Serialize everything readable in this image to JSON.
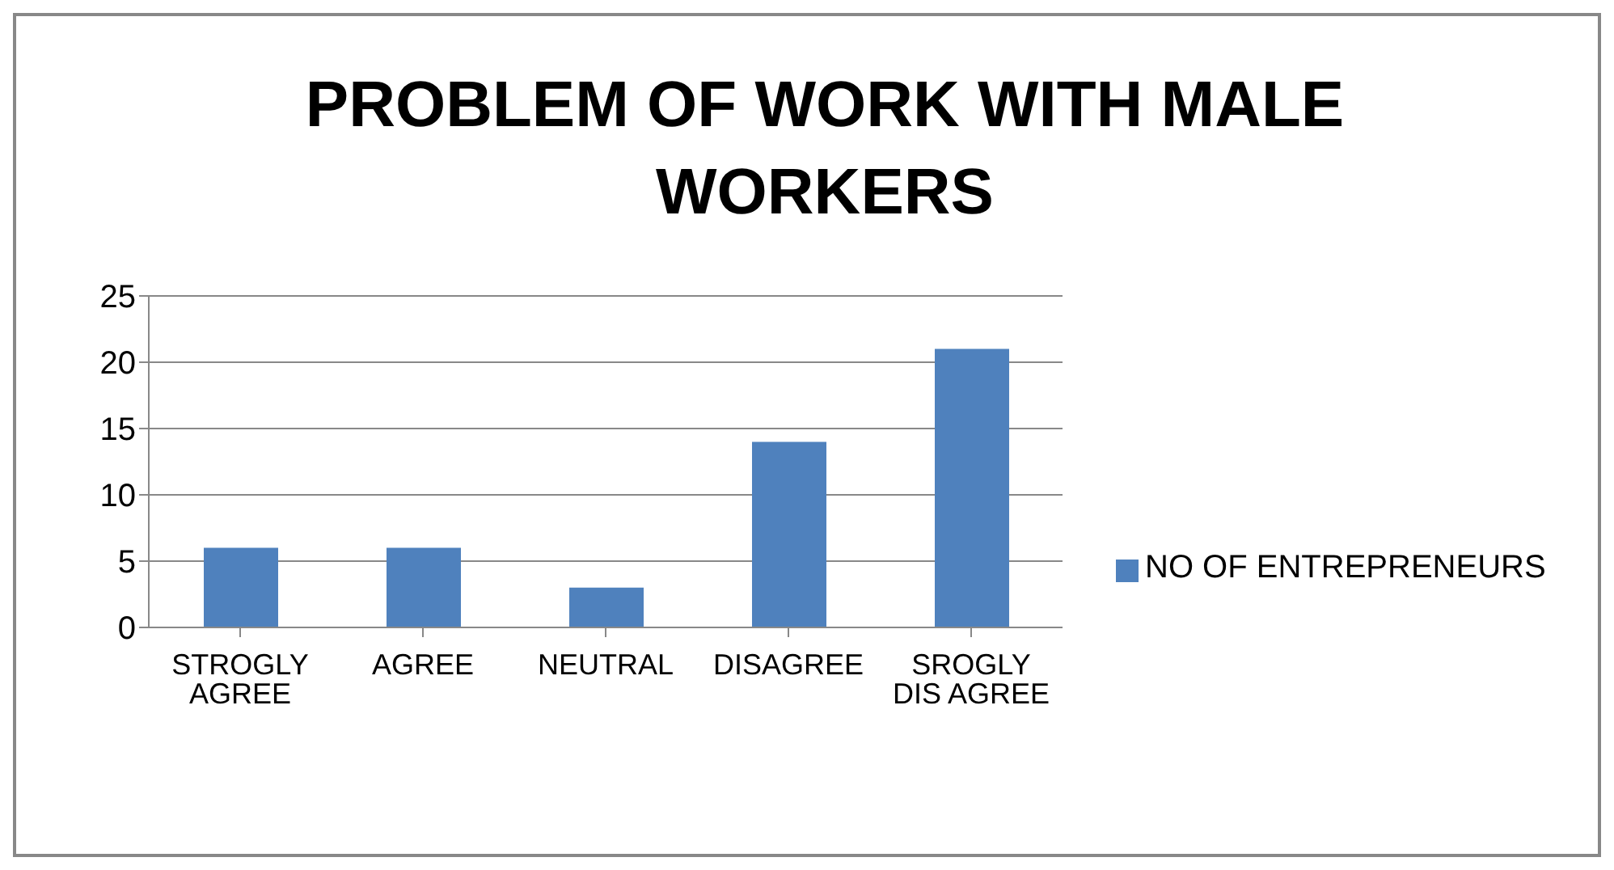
{
  "chart_data": {
    "type": "bar",
    "title": "PROBLEM OF WORK WITH MALE WORKERS",
    "categories": [
      "STROGLY AGREE",
      "AGREE",
      "NEUTRAL",
      "DISAGREE",
      "SROGLY DIS AGREE"
    ],
    "series": [
      {
        "name": "NO OF ENTREPRENEURS",
        "color": "#4f81bd",
        "values": [
          6,
          6,
          3,
          14,
          21
        ]
      }
    ],
    "ylim": [
      0,
      25
    ],
    "yticks": [
      0,
      5,
      10,
      15,
      20,
      25
    ],
    "grid": "y",
    "legend": "right"
  }
}
